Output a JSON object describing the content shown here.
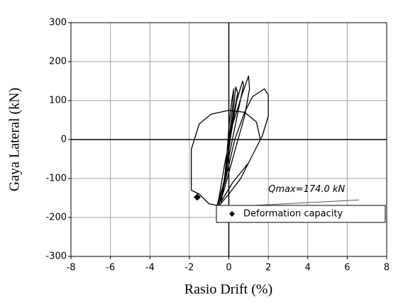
{
  "chart_data": {
    "type": "line",
    "xlabel": "Rasio Drift (%)",
    "ylabel": "Gaya Lateral (kN)",
    "annotation": "Qmax=174.0 kN",
    "xlim": [
      -8,
      8
    ],
    "xticks": [
      -8,
      -6,
      -4,
      -2,
      0,
      2,
      4,
      6,
      8
    ],
    "ylim": [
      -300,
      300
    ],
    "yticks": [
      -300,
      -200,
      -100,
      0,
      100,
      200,
      300
    ],
    "grid": true,
    "legend": "lower right",
    "series": [
      {
        "type": "line",
        "color": "#000000",
        "x": [
          0,
          0.1,
          0.2,
          0.25,
          0.15,
          0,
          -0.1,
          -0.2,
          -0.25,
          -0.1,
          0,
          0.2,
          0.35,
          0.45,
          0.2,
          -0.1,
          -0.35,
          -0.4,
          -0.2,
          0.1,
          0.4,
          0.7,
          0.75,
          0.5,
          0.1,
          -0.3,
          -0.6,
          -0.5,
          -0.2,
          0.2,
          0.7,
          1.0,
          1.05,
          0.8,
          0.3,
          -0.3,
          -0.55,
          -0.2,
          0.3,
          0.8,
          1.2,
          1.8,
          2.0,
          2.0,
          1.7,
          1.2,
          0.6,
          0.0,
          -0.5,
          -1.0,
          -1.5,
          -1.9,
          -1.9,
          -1.5,
          -0.9,
          0.0,
          0.8,
          1.4,
          1.6,
          1.0,
          0.2,
          -0.4
        ],
        "values": [
          0,
          40,
          90,
          130,
          100,
          30,
          -40,
          -90,
          -120,
          -80,
          -20,
          60,
          135,
          120,
          50,
          -60,
          -150,
          -165,
          -100,
          10,
          100,
          150,
          140,
          80,
          -20,
          -120,
          -170,
          -150,
          -60,
          40,
          120,
          163,
          130,
          60,
          -30,
          -140,
          -172,
          -110,
          0,
          70,
          110,
          130,
          115,
          60,
          10,
          -40,
          -100,
          -140,
          -170,
          -165,
          -140,
          -130,
          -25,
          40,
          65,
          75,
          70,
          45,
          0,
          -60,
          -110,
          -160
        ]
      },
      {
        "type": "scatter",
        "name": "Deformation capacity",
        "color": "#000000",
        "marker": "diamond",
        "x": [
          -1.6
        ],
        "values": [
          -148
        ]
      }
    ]
  }
}
